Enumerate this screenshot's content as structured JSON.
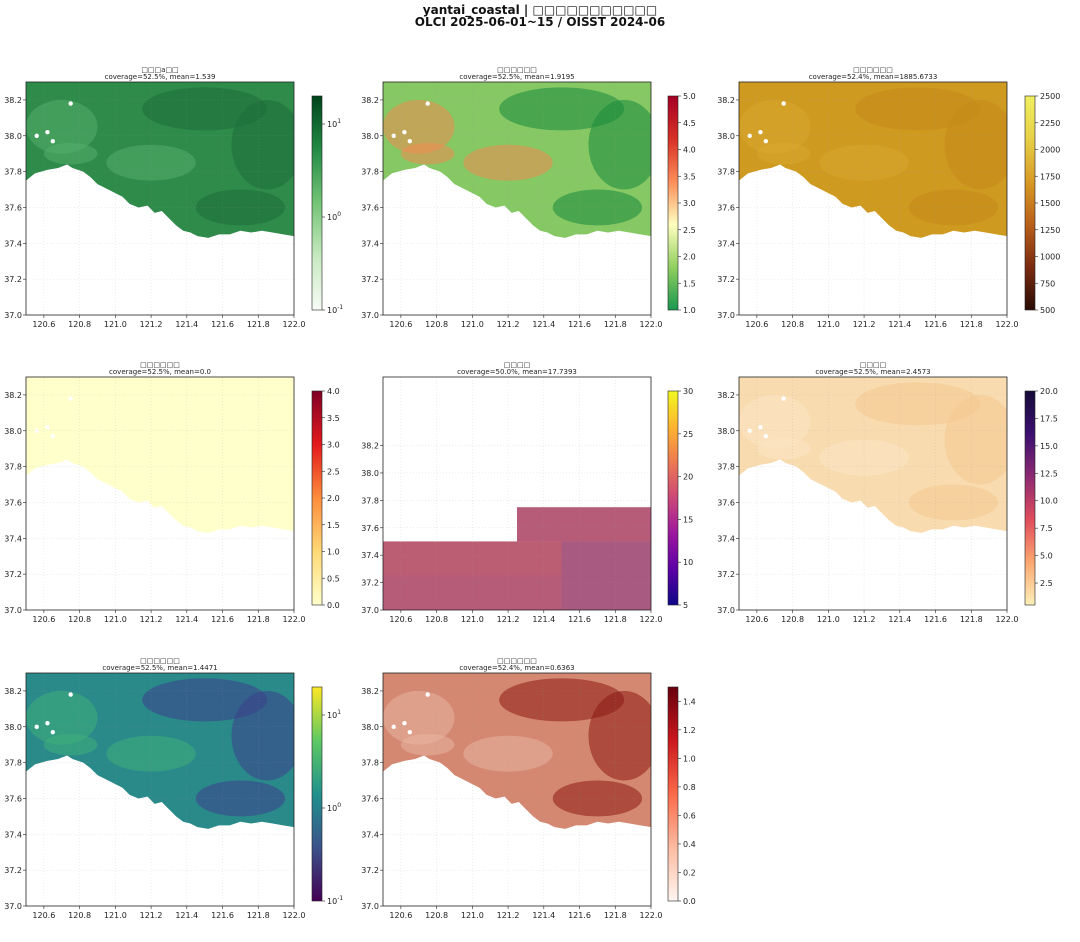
{
  "suptitle": {
    "line1": "yantai_coastal | □□□□□□□□□□□",
    "line2": "OLCI 2025-06-01~15 / OISST 2024-06"
  },
  "chart_data": [
    {
      "type": "heatmap",
      "title": "□□□a□□",
      "subtitle": "coverage=52.5%, mean=1.539",
      "xticks": [
        "120.6",
        "120.8",
        "121.0",
        "121.2",
        "121.4",
        "121.6",
        "121.8",
        "122.0"
      ],
      "yticks": [
        "37.0",
        "37.2",
        "37.4",
        "37.6",
        "37.8",
        "38.0",
        "38.2"
      ],
      "xlim": [
        120.5,
        122.0
      ],
      "ylim": [
        37.0,
        38.3
      ],
      "colorbar": {
        "scale": "log",
        "range": [
          0.1,
          20
        ],
        "ticks": [
          "10^-1",
          "10^0",
          "10^1"
        ],
        "cmap": "Greens"
      },
      "coverage_percent": 52.5,
      "mean": 1.539,
      "fill": "#2e8b4a",
      "fill_dark": "#1f6e3a",
      "fill_light": "#56ae6c"
    },
    {
      "type": "heatmap",
      "title": "□□□□□□",
      "subtitle": "coverage=52.5%, mean=1.9195",
      "xticks": [
        "120.6",
        "120.8",
        "121.0",
        "121.2",
        "121.4",
        "121.6",
        "121.8",
        "122.0"
      ],
      "yticks": [
        "37.0",
        "37.2",
        "37.4",
        "37.6",
        "37.8",
        "38.0",
        "38.2"
      ],
      "xlim": [
        120.5,
        122.0
      ],
      "ylim": [
        37.0,
        38.3
      ],
      "colorbar": {
        "scale": "linear",
        "range": [
          1.0,
          5.0
        ],
        "ticks": [
          "1.0",
          "1.5",
          "2.0",
          "2.5",
          "3.0",
          "3.5",
          "4.0",
          "4.5",
          "5.0"
        ],
        "cmap": "RdYlGn_r"
      },
      "coverage_percent": 52.5,
      "mean": 1.9195,
      "fill": "#86c864",
      "fill_dark": "#1a8a3c",
      "fill_light": "#f08a50"
    },
    {
      "type": "heatmap",
      "title": "□□□□□□",
      "subtitle": "coverage=52.4%, mean=1885.6733",
      "xticks": [
        "120.6",
        "120.8",
        "121.0",
        "121.2",
        "121.4",
        "121.6",
        "121.8",
        "122.0"
      ],
      "yticks": [
        "37.0",
        "37.2",
        "37.4",
        "37.6",
        "37.8",
        "38.0",
        "38.2"
      ],
      "xlim": [
        120.5,
        122.0
      ],
      "ylim": [
        37.0,
        38.3
      ],
      "colorbar": {
        "scale": "linear",
        "range": [
          500,
          2500
        ],
        "ticks": [
          "500",
          "750",
          "1000",
          "1250",
          "1500",
          "1750",
          "2000",
          "2250",
          "2500"
        ],
        "cmap": "afmhot"
      },
      "coverage_percent": 52.4,
      "mean": 1885.6733,
      "fill": "#cf9a20",
      "fill_dark": "#c48a18",
      "fill_light": "#d8a830"
    },
    {
      "type": "heatmap",
      "title": "□□□□□□",
      "subtitle": "coverage=52.5%, mean=0.0",
      "xticks": [
        "120.6",
        "120.8",
        "121.0",
        "121.2",
        "121.4",
        "121.6",
        "121.8",
        "122.0"
      ],
      "yticks": [
        "37.0",
        "37.2",
        "37.4",
        "37.6",
        "37.8",
        "38.0",
        "38.2"
      ],
      "xlim": [
        120.5,
        122.0
      ],
      "ylim": [
        37.0,
        38.3
      ],
      "colorbar": {
        "scale": "linear",
        "range": [
          0.0,
          4.0
        ],
        "ticks": [
          "0.0",
          "0.5",
          "1.0",
          "1.5",
          "2.0",
          "2.5",
          "3.0",
          "3.5",
          "4.0"
        ],
        "cmap": "YlOrRd"
      },
      "coverage_percent": 52.5,
      "mean": 0.0,
      "fill": "#ffffcc",
      "fill_dark": "#ffffcc",
      "fill_light": "#ffffcc"
    },
    {
      "type": "heatmap",
      "title": "□□□□",
      "subtitle": "coverage=50.0%, mean=17.7393",
      "xticks": [
        "120.6",
        "120.8",
        "121.0",
        "121.2",
        "121.4",
        "121.6",
        "121.8",
        "122.0"
      ],
      "yticks": [
        "37.0",
        "37.2",
        "37.4",
        "37.6",
        "37.8",
        "38.0",
        "38.2"
      ],
      "xlim": [
        120.5,
        122.0
      ],
      "ylim": [
        37.0,
        38.7
      ],
      "colorbar": {
        "scale": "linear",
        "range": [
          5,
          30
        ],
        "ticks": [
          "5",
          "10",
          "15",
          "20",
          "25",
          "30"
        ],
        "cmap": "plasma"
      },
      "coverage_percent": 50.0,
      "mean": 17.7393,
      "fill": "#b65c78",
      "fill_dark": "#a95a80",
      "fill_light": "#bb5e74"
    },
    {
      "type": "heatmap",
      "title": "□□□□",
      "subtitle": "coverage=52.5%, mean=2.4573",
      "xticks": [
        "120.6",
        "120.8",
        "121.0",
        "121.2",
        "121.4",
        "121.6",
        "121.8",
        "122.0"
      ],
      "yticks": [
        "37.0",
        "37.2",
        "37.4",
        "37.6",
        "37.8",
        "38.0",
        "38.2"
      ],
      "xlim": [
        120.5,
        122.0
      ],
      "ylim": [
        37.0,
        38.3
      ],
      "colorbar": {
        "scale": "linear",
        "range": [
          0.5,
          20.0
        ],
        "ticks": [
          "2.5",
          "5.0",
          "7.5",
          "10.0",
          "12.5",
          "15.0",
          "17.5",
          "20.0"
        ],
        "cmap": "magma_r"
      },
      "coverage_percent": 52.5,
      "mean": 2.4573,
      "fill": "#f8dcb0",
      "fill_dark": "#f4c890",
      "fill_light": "#fbe6c4"
    },
    {
      "type": "heatmap",
      "title": "□□□□□□",
      "subtitle": "coverage=52.5%, mean=1.4471",
      "xticks": [
        "120.6",
        "120.8",
        "121.0",
        "121.2",
        "121.4",
        "121.6",
        "121.8",
        "122.0"
      ],
      "yticks": [
        "37.0",
        "37.2",
        "37.4",
        "37.6",
        "37.8",
        "38.0",
        "38.2"
      ],
      "xlim": [
        120.5,
        122.0
      ],
      "ylim": [
        37.0,
        38.3
      ],
      "colorbar": {
        "scale": "log",
        "range": [
          0.1,
          20
        ],
        "ticks": [
          "10^-1",
          "10^0",
          "10^1"
        ],
        "cmap": "viridis"
      },
      "coverage_percent": 52.5,
      "mean": 1.4471,
      "fill": "#2a8a8a",
      "fill_dark": "#3b3f8c",
      "fill_light": "#3fae78"
    },
    {
      "type": "heatmap",
      "title": "□□□□□□",
      "subtitle": "coverage=52.4%, mean=0.6363",
      "xticks": [
        "120.6",
        "120.8",
        "121.0",
        "121.2",
        "121.4",
        "121.6",
        "121.8",
        "122.0"
      ],
      "yticks": [
        "37.0",
        "37.2",
        "37.4",
        "37.6",
        "37.8",
        "38.0",
        "38.2"
      ],
      "xlim": [
        120.5,
        122.0
      ],
      "ylim": [
        37.0,
        38.3
      ],
      "colorbar": {
        "scale": "linear",
        "range": [
          0.0,
          1.5
        ],
        "ticks": [
          "0.0",
          "0.2",
          "0.4",
          "0.6",
          "0.8",
          "1.0",
          "1.2",
          "1.4"
        ],
        "cmap": "Reds"
      },
      "coverage_percent": 52.4,
      "mean": 0.6363,
      "fill": "#d48872",
      "fill_dark": "#8a1a14",
      "fill_light": "#e8b4a0"
    }
  ]
}
